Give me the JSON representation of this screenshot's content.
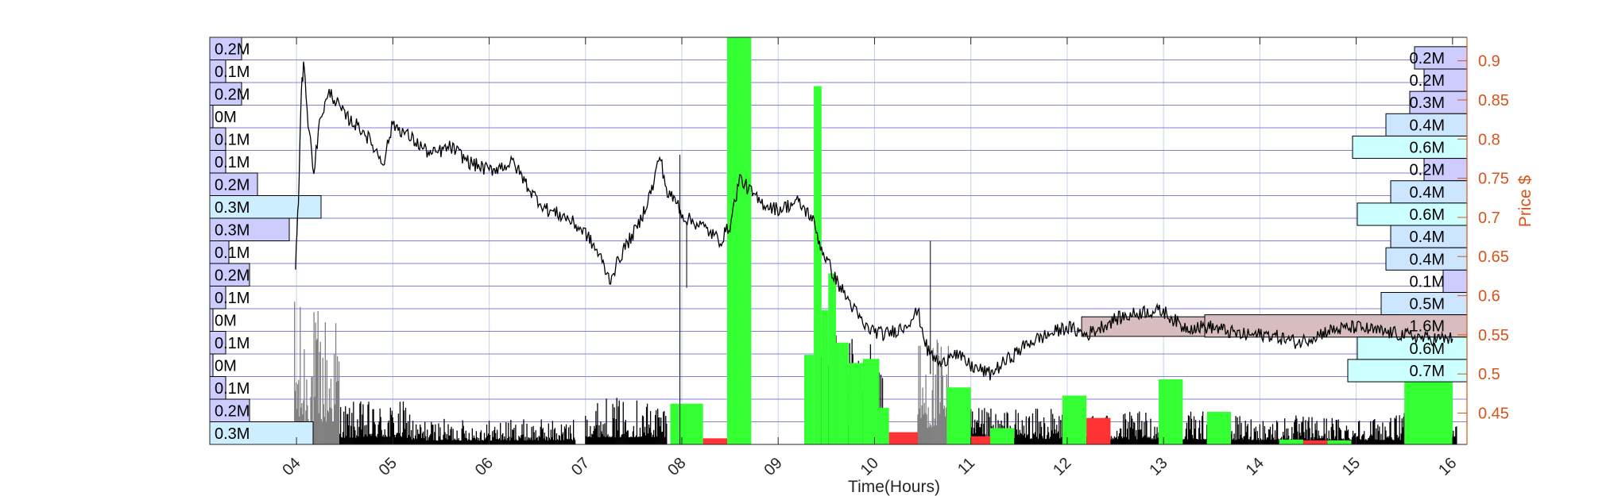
{
  "chart_data": {
    "type": "line",
    "description_series": "Intraday price (line) with per-bar volume (bars) and volume profile histograms on both sides",
    "xlabel": "Time(Hours)",
    "ylabel_right": "Price $",
    "x_range": [
      3.1,
      16.15
    ],
    "y_range": [
      0.41,
      0.93
    ],
    "x_ticks": [
      {
        "value": 4,
        "label": "04"
      },
      {
        "value": 5,
        "label": "05"
      },
      {
        "value": 6,
        "label": "06"
      },
      {
        "value": 7,
        "label": "07"
      },
      {
        "value": 8,
        "label": "08"
      },
      {
        "value": 9,
        "label": "09"
      },
      {
        "value": 10,
        "label": "10"
      },
      {
        "value": 11,
        "label": "11"
      },
      {
        "value": 12,
        "label": "12"
      },
      {
        "value": 13,
        "label": "13"
      },
      {
        "value": 14,
        "label": "14"
      },
      {
        "value": 15,
        "label": "15"
      },
      {
        "value": 16,
        "label": "16"
      }
    ],
    "y_ticks": [
      {
        "value": 0.45,
        "label": "0.45"
      },
      {
        "value": 0.5,
        "label": "0.5"
      },
      {
        "value": 0.55,
        "label": "0.55"
      },
      {
        "value": 0.6,
        "label": "0.6"
      },
      {
        "value": 0.65,
        "label": "0.65"
      },
      {
        "value": 0.7,
        "label": "0.7"
      },
      {
        "value": 0.75,
        "label": "0.75"
      },
      {
        "value": 0.8,
        "label": "0.8"
      },
      {
        "value": 0.85,
        "label": "0.85"
      },
      {
        "value": 0.9,
        "label": "0.9"
      }
    ],
    "price_series": {
      "color": "#000000",
      "points": [
        [
          3.99,
          0.64
        ],
        [
          4.02,
          0.72
        ],
        [
          4.05,
          0.86
        ],
        [
          4.08,
          0.9
        ],
        [
          4.12,
          0.82
        ],
        [
          4.18,
          0.76
        ],
        [
          4.25,
          0.83
        ],
        [
          4.35,
          0.86
        ],
        [
          4.5,
          0.83
        ],
        [
          4.7,
          0.81
        ],
        [
          4.9,
          0.77
        ],
        [
          5.0,
          0.82
        ],
        [
          5.2,
          0.8
        ],
        [
          5.4,
          0.78
        ],
        [
          5.6,
          0.79
        ],
        [
          5.8,
          0.77
        ],
        [
          6.0,
          0.76
        ],
        [
          6.25,
          0.77
        ],
        [
          6.45,
          0.73
        ],
        [
          6.6,
          0.71
        ],
        [
          6.8,
          0.7
        ],
        [
          7.0,
          0.68
        ],
        [
          7.15,
          0.65
        ],
        [
          7.25,
          0.62
        ],
        [
          7.4,
          0.66
        ],
        [
          7.55,
          0.69
        ],
        [
          7.7,
          0.74
        ],
        [
          7.77,
          0.78
        ],
        [
          7.85,
          0.73
        ],
        [
          7.95,
          0.72
        ],
        [
          8.02,
          0.7
        ],
        [
          8.2,
          0.69
        ],
        [
          8.4,
          0.67
        ],
        [
          8.5,
          0.69
        ],
        [
          8.6,
          0.75
        ],
        [
          8.8,
          0.72
        ],
        [
          9.0,
          0.71
        ],
        [
          9.2,
          0.72
        ],
        [
          9.35,
          0.7
        ],
        [
          9.45,
          0.66
        ],
        [
          9.6,
          0.62
        ],
        [
          9.7,
          0.6
        ],
        [
          9.9,
          0.56
        ],
        [
          10.1,
          0.55
        ],
        [
          10.3,
          0.56
        ],
        [
          10.45,
          0.58
        ],
        [
          10.55,
          0.53
        ],
        [
          10.7,
          0.51
        ],
        [
          10.8,
          0.53
        ],
        [
          11.0,
          0.51
        ],
        [
          11.2,
          0.5
        ],
        [
          11.4,
          0.52
        ],
        [
          11.6,
          0.54
        ],
        [
          11.8,
          0.55
        ],
        [
          12.0,
          0.56
        ],
        [
          12.2,
          0.55
        ],
        [
          12.5,
          0.57
        ],
        [
          12.8,
          0.58
        ],
        [
          13.0,
          0.58
        ],
        [
          13.2,
          0.56
        ],
        [
          13.5,
          0.56
        ],
        [
          13.8,
          0.55
        ],
        [
          14.1,
          0.55
        ],
        [
          14.4,
          0.54
        ],
        [
          14.7,
          0.555
        ],
        [
          15.0,
          0.56
        ],
        [
          15.2,
          0.555
        ],
        [
          15.5,
          0.55
        ],
        [
          15.75,
          0.545
        ],
        [
          16.0,
          0.545
        ]
      ]
    },
    "value_area": {
      "x_start": 12.15,
      "x_end": 16.15,
      "y_low": 0.548,
      "y_high": 0.573,
      "color": "#d7bdbf"
    },
    "volume_bars": [
      {
        "start": 7.88,
        "end": 8.22,
        "rel_volume": 0.1,
        "color": "#33ff33"
      },
      {
        "start": 8.22,
        "end": 8.47,
        "rel_volume": 0.015,
        "color": "#ff3333"
      },
      {
        "start": 8.47,
        "end": 8.72,
        "rel_volume": 1.0,
        "color": "#33ff33"
      },
      {
        "start": 9.27,
        "end": 9.37,
        "rel_volume": 0.22,
        "color": "#33ff33"
      },
      {
        "start": 9.37,
        "end": 9.45,
        "rel_volume": 0.88,
        "color": "#33ff33"
      },
      {
        "start": 9.45,
        "end": 9.52,
        "rel_volume": 0.33,
        "color": "#33ff33"
      },
      {
        "start": 9.52,
        "end": 9.6,
        "rel_volume": 0.42,
        "color": "#33ff33"
      },
      {
        "start": 9.6,
        "end": 9.73,
        "rel_volume": 0.25,
        "color": "#33ff33"
      },
      {
        "start": 9.73,
        "end": 9.88,
        "rel_volume": 0.2,
        "color": "#33ff33"
      },
      {
        "start": 9.88,
        "end": 10.05,
        "rel_volume": 0.21,
        "color": "#33ff33"
      },
      {
        "start": 10.05,
        "end": 10.15,
        "rel_volume": 0.09,
        "color": "#33ff33"
      },
      {
        "start": 10.15,
        "end": 10.45,
        "rel_volume": 0.03,
        "color": "#ff3333"
      },
      {
        "start": 10.75,
        "end": 11.0,
        "rel_volume": 0.14,
        "color": "#33ff33"
      },
      {
        "start": 11.0,
        "end": 11.2,
        "rel_volume": 0.02,
        "color": "#ff3333"
      },
      {
        "start": 11.2,
        "end": 11.45,
        "rel_volume": 0.04,
        "color": "#33ff33"
      },
      {
        "start": 11.95,
        "end": 12.2,
        "rel_volume": 0.12,
        "color": "#33ff33"
      },
      {
        "start": 12.2,
        "end": 12.45,
        "rel_volume": 0.065,
        "color": "#ff3333"
      },
      {
        "start": 12.95,
        "end": 13.2,
        "rel_volume": 0.16,
        "color": "#33ff33"
      },
      {
        "start": 13.45,
        "end": 13.7,
        "rel_volume": 0.08,
        "color": "#33ff33"
      },
      {
        "start": 14.2,
        "end": 14.45,
        "rel_volume": 0.012,
        "color": "#33ff33"
      },
      {
        "start": 14.45,
        "end": 14.7,
        "rel_volume": 0.01,
        "color": "#ff3333"
      },
      {
        "start": 14.7,
        "end": 14.95,
        "rel_volume": 0.01,
        "color": "#33ff33"
      },
      {
        "start": 15.5,
        "end": 16.0,
        "rel_volume": 0.3,
        "color": "#33ff33"
      }
    ],
    "tick_volume_clusters": [
      {
        "start": 3.98,
        "end": 4.45,
        "peak": 0.39,
        "color": "#808080"
      },
      {
        "start": 4.45,
        "end": 5.2,
        "peak": 0.12,
        "color": "#000000"
      },
      {
        "start": 5.2,
        "end": 6.9,
        "peak": 0.07,
        "color": "#000000"
      },
      {
        "start": 7.0,
        "end": 7.85,
        "peak": 0.13,
        "color": "#000000"
      },
      {
        "start": 9.4,
        "end": 10.1,
        "peak": 0.3,
        "color": "#000000"
      },
      {
        "start": 10.45,
        "end": 10.8,
        "peak": 0.3,
        "color": "#808080"
      },
      {
        "start": 10.8,
        "end": 12.0,
        "peak": 0.1,
        "color": "#000000"
      },
      {
        "start": 12.0,
        "end": 13.5,
        "peak": 0.09,
        "color": "#000000"
      },
      {
        "start": 13.5,
        "end": 15.5,
        "peak": 0.08,
        "color": "#000000"
      },
      {
        "start": 15.5,
        "end": 16.05,
        "peak": 0.09,
        "color": "#000000"
      }
    ],
    "left_volume_profile": {
      "note": "Morning session volume profile, rows top to bottom",
      "rows": [
        {
          "label": "0.2M",
          "rel": 0.2,
          "color": "#ccccff"
        },
        {
          "label": "0.1M",
          "rel": 0.1,
          "color": "#ccccff"
        },
        {
          "label": "0.2M",
          "rel": 0.2,
          "color": "#ccccff"
        },
        {
          "label": "0M",
          "rel": 0.01,
          "color": "#ccccff"
        },
        {
          "label": "0.1M",
          "rel": 0.1,
          "color": "#ccccff"
        },
        {
          "label": "0.1M",
          "rel": 0.1,
          "color": "#ccccff"
        },
        {
          "label": "0.2M",
          "rel": 0.3,
          "color": "#ccccff"
        },
        {
          "label": "0.3M",
          "rel": 0.7,
          "color": "#cceeff"
        },
        {
          "label": "0.3M",
          "rel": 0.5,
          "color": "#ccccff"
        },
        {
          "label": "0.1M",
          "rel": 0.12,
          "color": "#ccccff"
        },
        {
          "label": "0.2M",
          "rel": 0.25,
          "color": "#ccccff"
        },
        {
          "label": "0.1M",
          "rel": 0.1,
          "color": "#ccccff"
        },
        {
          "label": "0M",
          "rel": 0.01,
          "color": "#ccccff"
        },
        {
          "label": "0.1M",
          "rel": 0.1,
          "color": "#ccccff"
        },
        {
          "label": "0M",
          "rel": 0.01,
          "color": "#ccccff"
        },
        {
          "label": "0.1M",
          "rel": 0.1,
          "color": "#ccccff"
        },
        {
          "label": "0.2M",
          "rel": 0.25,
          "color": "#ccccff"
        },
        {
          "label": "0.3M",
          "rel": 0.65,
          "color": "#cceeff"
        }
      ]
    },
    "right_volume_profile": {
      "note": "Full session volume profile, rows top to bottom",
      "rows": [
        {
          "label": "0.2M",
          "rel": 0.11,
          "color": "#ccccff"
        },
        {
          "label": "0.2M",
          "rel": 0.09,
          "color": "#ccccff"
        },
        {
          "label": "0.3M",
          "rel": 0.12,
          "color": "#ccccff"
        },
        {
          "label": "0.4M",
          "rel": 0.17,
          "color": "#cce6ff"
        },
        {
          "label": "0.6M",
          "rel": 0.24,
          "color": "#ccffff"
        },
        {
          "label": "0.2M",
          "rel": 0.09,
          "color": "#ccccff"
        },
        {
          "label": "0.4M",
          "rel": 0.16,
          "color": "#cce6ff"
        },
        {
          "label": "0.6M",
          "rel": 0.23,
          "color": "#ccffff"
        },
        {
          "label": "0.4M",
          "rel": 0.16,
          "color": "#cce6ff"
        },
        {
          "label": "0.4M",
          "rel": 0.17,
          "color": "#cce6ff"
        },
        {
          "label": "0.1M",
          "rel": 0.05,
          "color": "#ccccff"
        },
        {
          "label": "0.5M",
          "rel": 0.18,
          "color": "#cce6ff"
        },
        {
          "label": "1.6M",
          "rel": 0.55,
          "color": "#d7bdbf"
        },
        {
          "label": "0.6M",
          "rel": 0.23,
          "color": "#ccffff"
        },
        {
          "label": "0.7M",
          "rel": 0.25,
          "color": "#ccffff"
        }
      ]
    }
  }
}
